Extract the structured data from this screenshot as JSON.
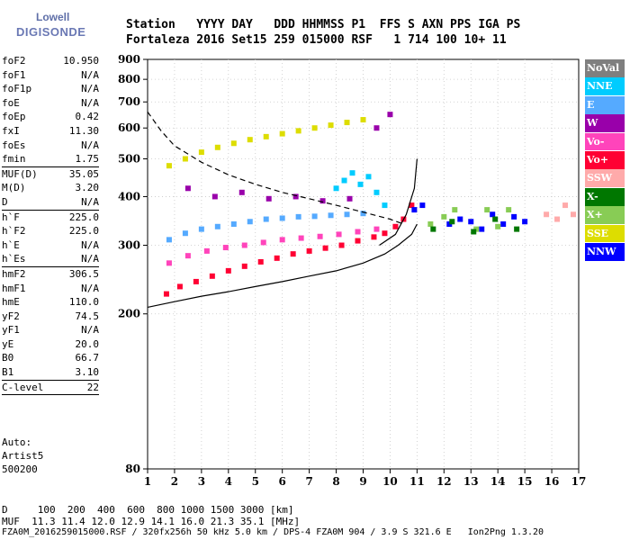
{
  "logo": {
    "line1": "Lowell",
    "line2": "DIGISONDE"
  },
  "header": {
    "row1": "Station   YYYY DAY   DDD HHMMSS P1  FFS S AXN PPS IGA PS",
    "row2": "Fortaleza 2016 Set15 259 015000 RSF   1 714 100 10+ 11"
  },
  "params": [
    {
      "k": "foF2",
      "v": "10.950"
    },
    {
      "k": "foF1",
      "v": "N/A"
    },
    {
      "k": "foF1p",
      "v": "N/A"
    },
    {
      "k": "foE",
      "v": "N/A"
    },
    {
      "k": "foEp",
      "v": "0.42"
    },
    {
      "k": "fxI",
      "v": "11.30"
    },
    {
      "k": "foEs",
      "v": "N/A"
    },
    {
      "k": "fmin",
      "v": "1.75",
      "sep": true
    },
    {
      "k": "MUF(D)",
      "v": "35.05"
    },
    {
      "k": "M(D)",
      "v": "3.20"
    },
    {
      "k": "D",
      "v": "N/A",
      "sep": true
    },
    {
      "k": "h`F",
      "v": "225.0"
    },
    {
      "k": "h`F2",
      "v": "225.0"
    },
    {
      "k": "h`E",
      "v": "N/A"
    },
    {
      "k": "h`Es",
      "v": "N/A",
      "sep": true
    },
    {
      "k": "hmF2",
      "v": "306.5"
    },
    {
      "k": "hmF1",
      "v": "N/A"
    },
    {
      "k": "hmE",
      "v": "110.0"
    },
    {
      "k": "yF2",
      "v": "74.5"
    },
    {
      "k": "yF1",
      "v": "N/A"
    },
    {
      "k": "yE",
      "v": "20.0"
    },
    {
      "k": "B0",
      "v": "66.7"
    },
    {
      "k": "B1",
      "v": "3.10",
      "sep": true
    },
    {
      "k": "C-level",
      "v": "22",
      "sep": true
    }
  ],
  "auto": {
    "line1": "Auto:",
    "line2": "Artist5",
    "line3": "500200"
  },
  "legend": [
    {
      "label": "NoVal",
      "color": "#7f7f7f"
    },
    {
      "label": "NNE",
      "color": "#00ccff"
    },
    {
      "label": "E",
      "color": "#55aaff"
    },
    {
      "label": "W",
      "color": "#9900aa"
    },
    {
      "label": "Vo-",
      "color": "#ff44bb"
    },
    {
      "label": "Vo+",
      "color": "#ff0033"
    },
    {
      "label": "SSW",
      "color": "#ffaaaa"
    },
    {
      "label": "X-",
      "color": "#007700"
    },
    {
      "label": "X+",
      "color": "#88cc55"
    },
    {
      "label": "SSE",
      "color": "#dddd00"
    },
    {
      "label": "NNW",
      "color": "#0000ff"
    }
  ],
  "footer": {
    "row1": "D     100  200  400  600  800 1000 1500 3000 [km]",
    "row2": "MUF  11.3 11.4 12.0 12.9 14.1 16.0 21.3 35.1 [MHz]",
    "row3": "FZA0M_2016259015000.RSF / 320fx256h 50 kHz 5.0 km / DPS-4 FZA0M 904 / 3.9 S 321.6 E   Ion2Png 1.3.20"
  },
  "chart_data": {
    "type": "scatter",
    "xlim": [
      1,
      17
    ],
    "ylim": [
      80,
      900
    ],
    "x_ticks": [
      1,
      2,
      3,
      4,
      5,
      6,
      7,
      8,
      9,
      10,
      11,
      12,
      13,
      14,
      15,
      16,
      17
    ],
    "y_ticks": [
      80,
      200,
      300,
      400,
      500,
      600,
      700,
      800,
      900
    ],
    "y_scale": "log",
    "grid": "dashed vertical and horizontal",
    "legend_placement": "right",
    "series": [
      {
        "color": "#ff0033",
        "points": [
          [
            1.7,
            225
          ],
          [
            2.2,
            235
          ],
          [
            2.8,
            242
          ],
          [
            3.4,
            250
          ],
          [
            4.0,
            258
          ],
          [
            4.6,
            265
          ],
          [
            5.2,
            272
          ],
          [
            5.8,
            278
          ],
          [
            6.4,
            285
          ],
          [
            7.0,
            290
          ],
          [
            7.6,
            295
          ],
          [
            8.2,
            300
          ],
          [
            8.8,
            308
          ],
          [
            9.4,
            315
          ],
          [
            9.8,
            322
          ],
          [
            10.2,
            335
          ],
          [
            10.5,
            350
          ],
          [
            10.8,
            380
          ]
        ]
      },
      {
        "color": "#55aaff",
        "points": [
          [
            1.8,
            310
          ],
          [
            2.4,
            322
          ],
          [
            3.0,
            330
          ],
          [
            3.6,
            335
          ],
          [
            4.2,
            340
          ],
          [
            4.8,
            345
          ],
          [
            5.4,
            350
          ],
          [
            6.0,
            352
          ],
          [
            6.6,
            355
          ],
          [
            7.2,
            356
          ],
          [
            7.8,
            358
          ],
          [
            8.4,
            360
          ],
          [
            9.0,
            362
          ]
        ]
      },
      {
        "color": "#dddd00",
        "points": [
          [
            1.8,
            480
          ],
          [
            2.4,
            500
          ],
          [
            3.0,
            520
          ],
          [
            3.6,
            535
          ],
          [
            4.2,
            548
          ],
          [
            4.8,
            560
          ],
          [
            5.4,
            570
          ],
          [
            6.0,
            580
          ],
          [
            6.6,
            590
          ],
          [
            7.2,
            600
          ],
          [
            7.8,
            610
          ],
          [
            8.4,
            620
          ],
          [
            9.0,
            630
          ]
        ]
      },
      {
        "color": "#ff44bb",
        "points": [
          [
            1.8,
            270
          ],
          [
            2.5,
            282
          ],
          [
            3.2,
            290
          ],
          [
            3.9,
            296
          ],
          [
            4.6,
            300
          ],
          [
            5.3,
            305
          ],
          [
            6.0,
            310
          ],
          [
            6.7,
            313
          ],
          [
            7.4,
            316
          ],
          [
            8.1,
            320
          ],
          [
            8.8,
            325
          ],
          [
            9.5,
            330
          ]
        ]
      },
      {
        "color": "#9900aa",
        "points": [
          [
            2.5,
            420
          ],
          [
            3.5,
            400
          ],
          [
            4.5,
            410
          ],
          [
            5.5,
            395
          ],
          [
            6.5,
            400
          ],
          [
            7.5,
            390
          ],
          [
            8.5,
            395
          ],
          [
            9.5,
            600
          ],
          [
            10.0,
            650
          ]
        ]
      },
      {
        "color": "#0000ff",
        "points": [
          [
            12.2,
            340
          ],
          [
            12.6,
            350
          ],
          [
            13.0,
            345
          ],
          [
            13.4,
            330
          ],
          [
            13.8,
            360
          ],
          [
            14.2,
            340
          ],
          [
            14.6,
            355
          ],
          [
            15.0,
            345
          ],
          [
            10.9,
            370
          ],
          [
            11.2,
            380
          ]
        ]
      },
      {
        "color": "#00ccff",
        "points": [
          [
            8.0,
            420
          ],
          [
            8.3,
            440
          ],
          [
            8.6,
            460
          ],
          [
            8.9,
            430
          ],
          [
            9.2,
            450
          ],
          [
            9.5,
            410
          ],
          [
            9.8,
            380
          ]
        ]
      },
      {
        "color": "#88cc55",
        "points": [
          [
            11.5,
            340
          ],
          [
            12.0,
            355
          ],
          [
            12.4,
            370
          ],
          [
            13.2,
            330
          ],
          [
            13.6,
            370
          ],
          [
            14.0,
            335
          ],
          [
            14.4,
            370
          ]
        ]
      },
      {
        "color": "#007700",
        "points": [
          [
            11.6,
            330
          ],
          [
            12.3,
            345
          ],
          [
            13.1,
            325
          ],
          [
            13.9,
            350
          ],
          [
            14.7,
            330
          ]
        ]
      },
      {
        "color": "#ffaaaa",
        "points": [
          [
            16.5,
            380
          ],
          [
            16.8,
            360
          ],
          [
            15.8,
            360
          ],
          [
            16.2,
            350
          ]
        ]
      }
    ],
    "lines": [
      {
        "style": "dashed",
        "color": "#000000",
        "points": [
          [
            1.0,
            660
          ],
          [
            1.5,
            590
          ],
          [
            2.0,
            540
          ],
          [
            3.0,
            490
          ],
          [
            4.0,
            455
          ],
          [
            5.0,
            430
          ],
          [
            6.0,
            410
          ],
          [
            7.0,
            395
          ],
          [
            8.0,
            380
          ],
          [
            9.0,
            365
          ],
          [
            10.0,
            350
          ],
          [
            10.5,
            340
          ]
        ]
      },
      {
        "style": "solid",
        "color": "#000000",
        "points": [
          [
            1.0,
            208
          ],
          [
            2.0,
            215
          ],
          [
            3.0,
            222
          ],
          [
            4.0,
            228
          ],
          [
            5.0,
            235
          ],
          [
            6.0,
            242
          ],
          [
            7.0,
            250
          ],
          [
            8.0,
            258
          ],
          [
            9.0,
            270
          ],
          [
            9.8,
            285
          ],
          [
            10.3,
            300
          ],
          [
            10.8,
            320
          ],
          [
            11.0,
            340
          ]
        ]
      },
      {
        "style": "solid",
        "color": "#000000",
        "points": [
          [
            9.6,
            300
          ],
          [
            10.2,
            320
          ],
          [
            10.6,
            360
          ],
          [
            10.9,
            420
          ],
          [
            11.0,
            500
          ]
        ]
      }
    ]
  }
}
